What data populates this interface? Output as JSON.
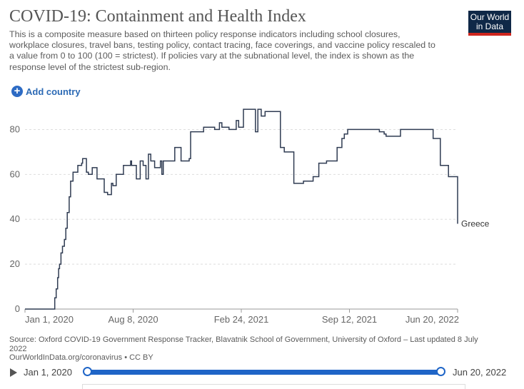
{
  "header": {
    "title": "COVID-19: Containment and Health Index",
    "subtitle": "This is a composite measure based on thirteen policy response indicators including school closures, workplace closures, travel bans, testing policy, contact tracing, face coverings, and vaccine policy rescaled to a value from 0 to 100 (100 = strictest). If policies vary at the subnational level, the index is shown as the response level of the strictest sub-region.",
    "logo_line1": "Our World",
    "logo_line2": "in Data"
  },
  "controls": {
    "add_country_label": "Add country",
    "add_icon": "plus-circle-icon"
  },
  "chart_data": {
    "type": "line",
    "title": "COVID-19: Containment and Health Index",
    "xlabel": "",
    "ylabel": "",
    "ylim": [
      0,
      90
    ],
    "yticks": [
      0,
      20,
      40,
      60,
      80
    ],
    "xtick_labels": [
      "Jan 1, 2020",
      "Aug 8, 2020",
      "Feb 24, 2021",
      "Sep 12, 2021",
      "Jun 20, 2022"
    ],
    "grid": "horizontal dashed",
    "series": [
      {
        "name": "Greece",
        "color": "#2f3b52",
        "x_unit": "days since Jan 1, 2020",
        "x": [
          0,
          60,
          62,
          65,
          68,
          70,
          72,
          75,
          78,
          82,
          85,
          88,
          92,
          95,
          100,
          103,
          108,
          110,
          118,
          120,
          125,
          128,
          132,
          138,
          140,
          150,
          162,
          165,
          172,
          180,
          183,
          190,
          195,
          205,
          220,
          222,
          232,
          240,
          246,
          252,
          257,
          262,
          266,
          270,
          282,
          285,
          288,
          298,
          312,
          325,
          332,
          342,
          345,
          350,
          365,
          372,
          380,
          395,
          405,
          410,
          415,
          425,
          440,
          445,
          455,
          480,
          485,
          492,
          500,
          525,
          532,
          540,
          560,
          580,
          590,
          600,
          612,
          628,
          650,
          660,
          665,
          672,
          680,
          686,
          693,
          700,
          720,
          738,
          748,
          752,
          760,
          782,
          800,
          825,
          831,
          850,
          865,
          882,
          901
        ],
        "y": [
          0,
          0,
          5,
          9,
          14,
          18,
          20,
          25,
          28,
          31,
          36,
          43,
          50,
          57,
          61,
          61,
          61,
          64,
          65,
          67,
          67,
          61,
          60,
          60,
          63,
          58,
          58,
          52,
          51,
          56,
          55,
          60,
          60,
          64,
          66,
          64,
          58,
          66,
          64,
          58,
          69,
          66,
          66,
          63,
          66,
          60,
          66,
          66,
          72,
          66,
          66,
          67,
          79,
          79,
          79,
          81,
          81,
          80,
          83,
          81,
          81,
          80,
          84,
          81,
          89,
          79,
          89,
          86,
          88,
          88,
          72,
          70,
          56,
          57,
          57,
          59,
          65,
          66,
          72,
          76,
          78,
          80,
          80,
          80,
          80,
          80,
          80,
          79,
          78,
          77,
          77,
          80,
          80,
          80,
          80,
          76,
          64,
          59,
          38
        ]
      }
    ]
  },
  "source": {
    "line1": "Source: Oxford COVID-19 Government Response Tracker, Blavatnik School of Government, University of Oxford – Last updated 8 July 2022",
    "line2": "OurWorldInData.org/coronavirus • CC BY"
  },
  "timeline": {
    "start_label": "Jan 1, 2020",
    "end_label": "Jun 20, 2022"
  }
}
